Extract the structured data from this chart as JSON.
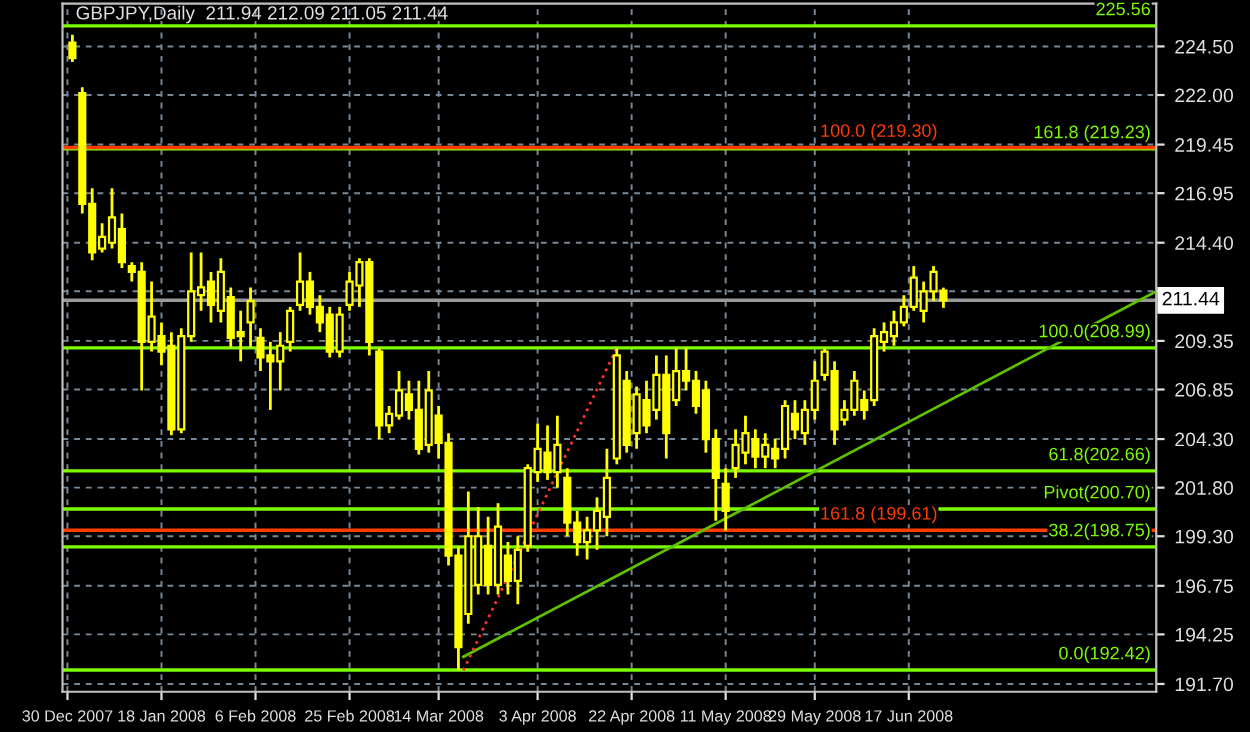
{
  "chart_data": {
    "type": "candlestick",
    "title": "GBPJPY,Daily  211.94 212.09 211.05 211.44",
    "xlim": [
      "2007-12-29",
      "2008-08-06"
    ],
    "xticks": [
      {
        "value": "2007-12-30",
        "label": "30 Dec 2007"
      },
      {
        "value": "2008-01-18",
        "label": "18 Jan 2008"
      },
      {
        "value": "2008-02-06",
        "label": "6 Feb 2008"
      },
      {
        "value": "2008-02-25",
        "label": "25 Feb 2008"
      },
      {
        "value": "2008-03-14",
        "label": "14 Mar 2008"
      },
      {
        "value": "2008-04-03",
        "label": "3 Apr 2008"
      },
      {
        "value": "2008-04-22",
        "label": "22 Apr 2008"
      },
      {
        "value": "2008-05-11",
        "label": "11 May 2008"
      },
      {
        "value": "2008-05-29",
        "label": "29 May 2008"
      },
      {
        "value": "2008-06-17",
        "label": "17 Jun 2008"
      }
    ],
    "ylim": [
      191.3,
      226.7
    ],
    "yticks": [
      {
        "value": 224.5,
        "label": "224.50"
      },
      {
        "value": 222.0,
        "label": "222.00"
      },
      {
        "value": 219.45,
        "label": "219.45"
      },
      {
        "value": 216.95,
        "label": "216.95"
      },
      {
        "value": 214.4,
        "label": "214.40"
      },
      {
        "value": 211.9,
        "label": null
      },
      {
        "value": 209.35,
        "label": "209.35"
      },
      {
        "value": 206.85,
        "label": "206.85"
      },
      {
        "value": 204.3,
        "label": "204.30"
      },
      {
        "value": 201.8,
        "label": "201.80"
      },
      {
        "value": 199.3,
        "label": "199.30"
      },
      {
        "value": 196.75,
        "label": "196.75"
      },
      {
        "value": 194.25,
        "label": "194.25"
      },
      {
        "value": 191.7,
        "label": "191.70"
      }
    ],
    "grid": true,
    "ref_lines": [
      {
        "axis": "y",
        "value": 225.56,
        "label": "225.56",
        "color": "#7cfc00"
      },
      {
        "axis": "y",
        "value": 219.23,
        "label": "161.8 (219.23)",
        "color": "#7cfc00"
      },
      {
        "axis": "y",
        "value": 208.99,
        "label": "100.0(208.99)",
        "color": "#7cfc00"
      },
      {
        "axis": "y",
        "value": 202.66,
        "label": "61.8(202.66)",
        "color": "#7cfc00"
      },
      {
        "axis": "y",
        "value": 200.7,
        "label": "Pivot(200.70)",
        "color": "#7cfc00"
      },
      {
        "axis": "y",
        "value": 198.75,
        "label": "38.2(198.75)",
        "color": "#7cfc00"
      },
      {
        "axis": "y",
        "value": 192.42,
        "label": "0.0(192.42)",
        "color": "#7cfc00"
      },
      {
        "axis": "y",
        "value": 219.3,
        "label": "100.0 (219.30)",
        "color": "#ff3c00"
      },
      {
        "axis": "y",
        "value": 199.61,
        "label": "161.8 (199.61)",
        "color": "#ff3c00"
      },
      {
        "axis": "y",
        "value": 211.44,
        "label": "211.44",
        "color": "#9a9a9a"
      }
    ],
    "series": [
      {
        "type": "line",
        "color": "#5fc000",
        "x": [
          "2008-03-19",
          "2008-08-06"
        ],
        "values": [
          193.1,
          211.9
        ]
      },
      {
        "type": "line",
        "color": "#ff3030",
        "line_style": "dotted",
        "x": [
          "2008-03-19",
          "2008-04-19"
        ],
        "values": [
          192.4,
          209.0
        ]
      },
      {
        "type": "candlestick",
        "color": "#ffff00",
        "x": [
          "2007-12-31",
          "2008-01-02",
          "2008-01-04",
          "2008-01-06",
          "2008-01-08",
          "2008-01-10",
          "2008-01-12",
          "2008-01-14",
          "2008-01-16",
          "2008-01-18",
          "2008-01-20",
          "2008-01-22",
          "2008-01-24",
          "2008-01-26",
          "2008-01-28",
          "2008-01-30",
          "2008-02-01",
          "2008-02-03",
          "2008-02-05",
          "2008-02-07",
          "2008-02-09",
          "2008-02-11",
          "2008-02-13",
          "2008-02-15",
          "2008-02-17",
          "2008-02-19",
          "2008-02-21",
          "2008-02-23",
          "2008-02-25",
          "2008-02-27",
          "2008-02-29",
          "2008-03-02",
          "2008-03-04",
          "2008-03-06",
          "2008-03-08",
          "2008-03-10",
          "2008-03-12",
          "2008-03-14",
          "2008-03-16",
          "2008-03-18",
          "2008-03-20",
          "2008-03-22",
          "2008-03-24",
          "2008-03-26",
          "2008-03-28",
          "2008-03-30",
          "2008-04-01",
          "2008-04-03",
          "2008-04-05",
          "2008-04-07",
          "2008-04-09",
          "2008-04-11",
          "2008-04-13",
          "2008-04-15",
          "2008-04-17",
          "2008-04-19",
          "2008-04-21",
          "2008-04-23",
          "2008-04-25",
          "2008-04-27",
          "2008-04-29",
          "2008-05-01",
          "2008-05-03",
          "2008-05-05",
          "2008-05-07",
          "2008-05-09",
          "2008-05-11",
          "2008-05-13",
          "2008-05-15",
          "2008-05-17",
          "2008-05-19",
          "2008-05-21",
          "2008-05-23",
          "2008-05-25",
          "2008-05-27",
          "2008-05-29",
          "2008-05-31",
          "2008-06-02",
          "2008-06-04",
          "2008-06-06",
          "2008-06-08",
          "2008-06-10",
          "2008-06-12",
          "2008-06-14",
          "2008-06-16",
          "2008-06-18",
          "2008-06-20",
          "2008-06-22",
          "2008-06-24"
        ],
        "ohlc": [
          [
            224.7,
            225.1,
            223.7,
            223.9
          ],
          [
            222.1,
            222.4,
            215.9,
            216.4
          ],
          [
            216.4,
            217.2,
            213.5,
            213.9
          ],
          [
            214.1,
            215.4,
            213.9,
            214.7
          ],
          [
            214.4,
            217.2,
            214.1,
            215.7
          ],
          [
            215.1,
            215.9,
            213.1,
            213.4
          ],
          [
            213.2,
            213.4,
            212.4,
            212.9
          ],
          [
            212.9,
            213.4,
            206.8,
            209.3
          ],
          [
            209.3,
            212.4,
            208.8,
            210.6
          ],
          [
            209.6,
            210.3,
            208.1,
            208.8
          ],
          [
            209.1,
            209.8,
            204.5,
            204.8
          ],
          [
            204.8,
            210.0,
            204.6,
            209.6
          ],
          [
            209.6,
            213.9,
            209.3,
            211.9
          ],
          [
            211.7,
            213.9,
            210.9,
            212.1
          ],
          [
            212.4,
            212.9,
            210.3,
            211.2
          ],
          [
            210.9,
            213.6,
            210.3,
            212.9
          ],
          [
            211.6,
            212.1,
            209.0,
            209.5
          ],
          [
            209.8,
            210.9,
            208.3,
            209.6
          ],
          [
            210.3,
            212.1,
            209.0,
            211.4
          ],
          [
            209.5,
            210.0,
            207.8,
            208.5
          ],
          [
            208.6,
            209.3,
            205.8,
            208.3
          ],
          [
            208.3,
            209.8,
            206.8,
            209.1
          ],
          [
            209.3,
            211.1,
            208.8,
            210.9
          ],
          [
            211.2,
            213.9,
            210.9,
            212.4
          ],
          [
            212.4,
            212.9,
            210.7,
            211.1
          ],
          [
            211.1,
            211.7,
            209.8,
            210.3
          ],
          [
            210.7,
            211.1,
            208.5,
            208.8
          ],
          [
            208.8,
            211.1,
            208.5,
            210.7
          ],
          [
            211.2,
            212.9,
            210.9,
            212.4
          ],
          [
            212.2,
            213.6,
            211.1,
            213.4
          ],
          [
            213.4,
            213.6,
            208.6,
            209.3
          ],
          [
            208.8,
            209.0,
            204.3,
            205.0
          ],
          [
            205.0,
            206.0,
            204.6,
            205.6
          ],
          [
            205.5,
            207.8,
            205.3,
            206.8
          ],
          [
            206.6,
            207.3,
            205.3,
            205.8
          ],
          [
            205.8,
            207.3,
            203.5,
            203.8
          ],
          [
            204.0,
            207.8,
            203.6,
            206.8
          ],
          [
            205.5,
            206.0,
            203.3,
            204.1
          ],
          [
            204.1,
            204.6,
            197.8,
            198.3
          ],
          [
            198.3,
            198.8,
            192.4,
            193.6
          ],
          [
            195.3,
            201.6,
            194.8,
            199.3
          ],
          [
            196.8,
            200.8,
            196.3,
            199.3
          ],
          [
            198.8,
            200.3,
            196.3,
            196.8
          ],
          [
            196.8,
            201.0,
            196.3,
            199.8
          ],
          [
            198.3,
            199.0,
            196.3,
            197.0
          ],
          [
            197.0,
            199.3,
            195.8,
            198.6
          ],
          [
            198.8,
            203.0,
            198.5,
            202.8
          ],
          [
            202.6,
            205.1,
            202.1,
            203.8
          ],
          [
            203.6,
            205.0,
            202.2,
            202.6
          ],
          [
            202.6,
            205.5,
            201.8,
            204.0
          ],
          [
            202.3,
            202.8,
            199.3,
            200.0
          ],
          [
            200.0,
            200.6,
            198.3,
            199.0
          ],
          [
            199.0,
            200.3,
            198.1,
            199.6
          ],
          [
            199.6,
            201.3,
            198.6,
            200.6
          ],
          [
            200.3,
            203.8,
            199.3,
            202.3
          ],
          [
            203.3,
            209.0,
            203.0,
            208.6
          ],
          [
            207.3,
            207.8,
            203.6,
            204.0
          ],
          [
            204.6,
            207.0,
            203.8,
            206.6
          ],
          [
            206.3,
            207.3,
            204.6,
            205.0
          ],
          [
            205.8,
            208.6,
            205.3,
            207.6
          ],
          [
            207.6,
            208.6,
            203.3,
            204.6
          ],
          [
            206.3,
            209.0,
            206.0,
            207.8
          ],
          [
            207.8,
            209.0,
            206.8,
            207.3
          ],
          [
            207.3,
            207.8,
            205.6,
            206.0
          ],
          [
            206.8,
            207.3,
            203.6,
            204.3
          ],
          [
            204.3,
            204.8,
            200.1,
            202.3
          ],
          [
            202.0,
            202.8,
            199.6,
            200.6
          ],
          [
            202.8,
            204.8,
            202.3,
            204.0
          ],
          [
            203.6,
            205.5,
            203.0,
            204.6
          ],
          [
            204.3,
            204.8,
            202.8,
            203.4
          ],
          [
            203.4,
            204.6,
            202.8,
            204.0
          ],
          [
            203.8,
            204.3,
            202.8,
            203.3
          ],
          [
            203.8,
            206.3,
            203.3,
            206.0
          ],
          [
            205.6,
            206.3,
            204.3,
            204.8
          ],
          [
            204.6,
            206.3,
            204.0,
            205.8
          ],
          [
            205.8,
            208.3,
            205.3,
            207.3
          ],
          [
            207.6,
            209.0,
            207.3,
            208.8
          ],
          [
            207.8,
            208.3,
            204.0,
            204.8
          ],
          [
            205.3,
            206.3,
            205.0,
            205.8
          ],
          [
            205.8,
            207.8,
            205.5,
            207.3
          ],
          [
            206.3,
            206.8,
            205.3,
            205.8
          ],
          [
            206.3,
            210.0,
            206.0,
            209.6
          ],
          [
            209.3,
            210.3,
            208.8,
            209.8
          ],
          [
            209.6,
            210.9,
            209.1,
            210.3
          ],
          [
            210.3,
            211.7,
            210.1,
            211.1
          ],
          [
            211.1,
            213.2,
            210.9,
            212.6
          ],
          [
            210.9,
            212.4,
            210.3,
            211.9
          ],
          [
            211.9,
            213.2,
            211.4,
            212.9
          ],
          [
            211.94,
            212.09,
            211.05,
            211.44
          ]
        ]
      }
    ]
  }
}
